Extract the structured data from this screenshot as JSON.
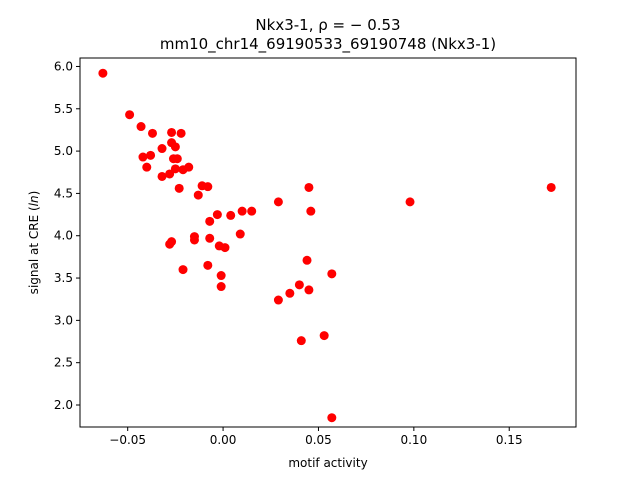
{
  "chart_data": {
    "type": "scatter",
    "title_line1": "Nkx3-1, ρ = − 0.53",
    "title_line2": "mm10_chr14_69190533_69190748 (Nkx3-1)",
    "xlabel": "motif activity",
    "ylabel": "signal at CRE (ln)",
    "xlim": [
      -0.075,
      0.185
    ],
    "ylim": [
      1.74,
      6.1
    ],
    "x_ticks": [
      -0.05,
      0.0,
      0.05,
      0.1,
      0.15
    ],
    "x_tick_labels": [
      "−0.05",
      "0.00",
      "0.05",
      "0.10",
      "0.15"
    ],
    "y_ticks": [
      2.0,
      2.5,
      3.0,
      3.5,
      4.0,
      4.5,
      5.0,
      5.5,
      6.0
    ],
    "y_tick_labels": [
      "2.0",
      "2.5",
      "3.0",
      "3.5",
      "4.0",
      "4.5",
      "5.0",
      "5.5",
      "6.0"
    ],
    "grid": false,
    "marker_color": "#ff0000",
    "points": [
      {
        "x": -0.063,
        "y": 5.92
      },
      {
        "x": -0.049,
        "y": 5.43
      },
      {
        "x": -0.043,
        "y": 5.29
      },
      {
        "x": -0.037,
        "y": 5.21
      },
      {
        "x": -0.027,
        "y": 5.22
      },
      {
        "x": -0.022,
        "y": 5.21
      },
      {
        "x": -0.027,
        "y": 5.1
      },
      {
        "x": -0.025,
        "y": 5.05
      },
      {
        "x": -0.032,
        "y": 5.03
      },
      {
        "x": -0.038,
        "y": 4.95
      },
      {
        "x": -0.042,
        "y": 4.93
      },
      {
        "x": -0.026,
        "y": 4.91
      },
      {
        "x": -0.024,
        "y": 4.91
      },
      {
        "x": -0.04,
        "y": 4.81
      },
      {
        "x": -0.025,
        "y": 4.79
      },
      {
        "x": -0.021,
        "y": 4.78
      },
      {
        "x": -0.018,
        "y": 4.81
      },
      {
        "x": -0.028,
        "y": 4.73
      },
      {
        "x": -0.032,
        "y": 4.7
      },
      {
        "x": -0.011,
        "y": 4.59
      },
      {
        "x": -0.008,
        "y": 4.58
      },
      {
        "x": -0.023,
        "y": 4.56
      },
      {
        "x": -0.013,
        "y": 4.48
      },
      {
        "x": 0.045,
        "y": 4.57
      },
      {
        "x": 0.029,
        "y": 4.4
      },
      {
        "x": 0.098,
        "y": 4.4
      },
      {
        "x": 0.172,
        "y": 4.57
      },
      {
        "x": 0.046,
        "y": 4.29
      },
      {
        "x": 0.01,
        "y": 4.29
      },
      {
        "x": 0.015,
        "y": 4.29
      },
      {
        "x": -0.003,
        "y": 4.25
      },
      {
        "x": 0.004,
        "y": 4.24
      },
      {
        "x": -0.007,
        "y": 4.17
      },
      {
        "x": 0.009,
        "y": 4.02
      },
      {
        "x": -0.015,
        "y": 3.99
      },
      {
        "x": -0.007,
        "y": 3.97
      },
      {
        "x": -0.015,
        "y": 3.95
      },
      {
        "x": -0.027,
        "y": 3.93
      },
      {
        "x": -0.028,
        "y": 3.9
      },
      {
        "x": -0.002,
        "y": 3.88
      },
      {
        "x": 0.001,
        "y": 3.86
      },
      {
        "x": 0.044,
        "y": 3.71
      },
      {
        "x": -0.008,
        "y": 3.65
      },
      {
        "x": -0.021,
        "y": 3.6
      },
      {
        "x": 0.057,
        "y": 3.55
      },
      {
        "x": -0.001,
        "y": 3.53
      },
      {
        "x": 0.04,
        "y": 3.42
      },
      {
        "x": -0.001,
        "y": 3.4
      },
      {
        "x": 0.045,
        "y": 3.36
      },
      {
        "x": 0.035,
        "y": 3.32
      },
      {
        "x": 0.029,
        "y": 3.24
      },
      {
        "x": 0.053,
        "y": 2.82
      },
      {
        "x": 0.041,
        "y": 2.76
      },
      {
        "x": 0.057,
        "y": 1.85
      }
    ]
  }
}
